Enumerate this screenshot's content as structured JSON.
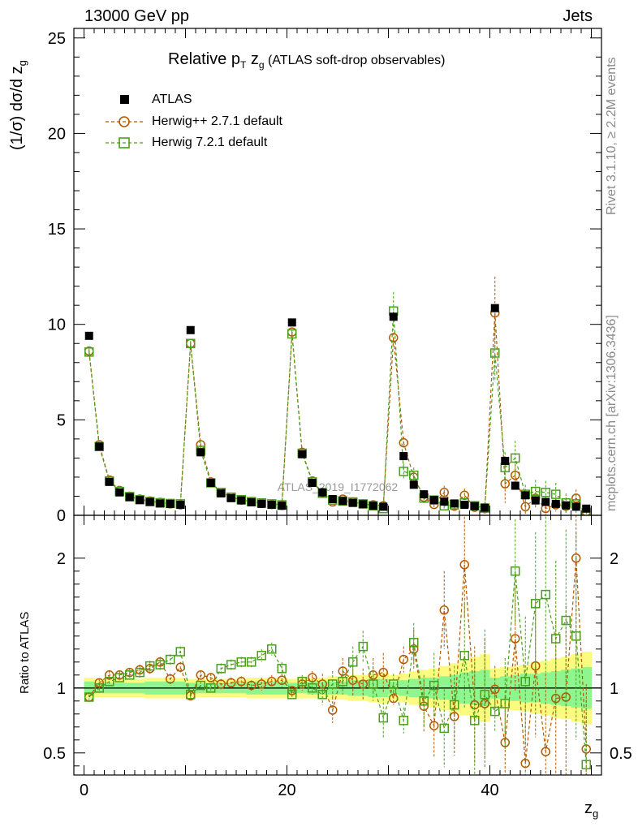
{
  "header": {
    "left": "13000 GeV pp",
    "right": "Jets"
  },
  "side_text": {
    "rivet": "Rivet 3.1.10, ≥ 2.2M events",
    "mcplots": "mcplots.cern.ch [arXiv:1306.3436]"
  },
  "colors": {
    "atlas": "#000000",
    "herwigpp": "#b35900",
    "herwig7": "#4aa01d",
    "band_inner": "#8ff58f",
    "band_outer": "#fbfb80"
  },
  "chart_data": {
    "type": "scatter",
    "title_main": "Relative p",
    "title_sub_T": "T",
    "title_z": " z",
    "title_sub_g": "g",
    "title_suffix": " (ATLAS soft-drop observables)",
    "watermark": "ATLAS_2019_I1772062",
    "xlabel": "z",
    "xlabel_sub": "g",
    "ylabel": "(1/σ) dσ/d z",
    "ylabel_sub": "g",
    "ratio_ylabel": "Ratio to ATLAS",
    "xlim": [
      -1,
      51
    ],
    "ylim": [
      0,
      25.5
    ],
    "ratio_ylim": [
      0.33,
      2.33
    ],
    "x_ticks": [
      0,
      20,
      40
    ],
    "y_ticks": [
      0,
      5,
      10,
      15,
      20,
      25
    ],
    "ratio_ticks": [
      0.5,
      1,
      2
    ],
    "ratio_tick_labels": [
      "0.5",
      "1",
      "2"
    ],
    "legend": [
      "ATLAS",
      "Herwig++ 2.7.1 default",
      "Herwig 7.2.1 default"
    ],
    "x": [
      0.5,
      1.5,
      2.5,
      3.5,
      4.5,
      5.5,
      6.5,
      7.5,
      8.5,
      9.5,
      10.5,
      11.5,
      12.5,
      13.5,
      14.5,
      15.5,
      16.5,
      17.5,
      18.5,
      19.5,
      20.5,
      21.5,
      22.5,
      23.5,
      24.5,
      25.5,
      26.5,
      27.5,
      28.5,
      29.5,
      30.5,
      31.5,
      32.5,
      33.5,
      34.5,
      35.5,
      36.5,
      37.5,
      38.5,
      39.5,
      40.5,
      41.5,
      42.5,
      43.5,
      44.5,
      45.5,
      46.5,
      47.5,
      48.5,
      49.5
    ],
    "series": [
      {
        "name": "ATLAS",
        "values": [
          9.4,
          3.6,
          1.75,
          1.2,
          0.95,
          0.8,
          0.7,
          0.62,
          0.6,
          0.55,
          9.7,
          3.3,
          1.7,
          1.15,
          0.9,
          0.78,
          0.68,
          0.6,
          0.55,
          0.5,
          10.1,
          3.2,
          1.7,
          1.2,
          0.85,
          0.75,
          0.65,
          0.58,
          0.5,
          0.45,
          10.4,
          3.1,
          1.6,
          1.1,
          0.8,
          0.72,
          0.62,
          0.55,
          0.48,
          0.4,
          10.85,
          2.85,
          1.55,
          1.05,
          0.78,
          0.7,
          0.6,
          0.52,
          0.45,
          0.35
        ],
        "ratio_band_inner": [
          0.05,
          0.04,
          0.04,
          0.04,
          0.04,
          0.04,
          0.05,
          0.05,
          0.05,
          0.05,
          0.04,
          0.04,
          0.04,
          0.04,
          0.04,
          0.04,
          0.05,
          0.05,
          0.05,
          0.05,
          0.04,
          0.04,
          0.05,
          0.05,
          0.05,
          0.05,
          0.06,
          0.06,
          0.07,
          0.07,
          0.05,
          0.06,
          0.07,
          0.08,
          0.08,
          0.09,
          0.1,
          0.12,
          0.13,
          0.14,
          0.08,
          0.09,
          0.1,
          0.11,
          0.11,
          0.12,
          0.13,
          0.14,
          0.15,
          0.16
        ],
        "ratio_band_outer": [
          0.08,
          0.07,
          0.07,
          0.07,
          0.07,
          0.07,
          0.08,
          0.08,
          0.08,
          0.08,
          0.07,
          0.07,
          0.07,
          0.07,
          0.07,
          0.07,
          0.08,
          0.08,
          0.08,
          0.08,
          0.07,
          0.08,
          0.08,
          0.08,
          0.09,
          0.09,
          0.1,
          0.1,
          0.11,
          0.12,
          0.1,
          0.11,
          0.13,
          0.14,
          0.15,
          0.17,
          0.19,
          0.21,
          0.24,
          0.26,
          0.15,
          0.16,
          0.17,
          0.18,
          0.2,
          0.21,
          0.23,
          0.24,
          0.26,
          0.28
        ]
      },
      {
        "name": "Herwig++ 2.7.1 default",
        "values": [
          8.6,
          3.7,
          1.85,
          1.3,
          1.0,
          0.85,
          0.75,
          0.68,
          0.6,
          0.55,
          9.0,
          3.7,
          1.75,
          1.2,
          0.95,
          0.8,
          0.72,
          0.63,
          0.57,
          0.52,
          9.6,
          3.3,
          1.8,
          1.2,
          0.7,
          0.85,
          0.7,
          0.6,
          0.55,
          0.5,
          9.3,
          3.8,
          2.0,
          0.95,
          0.57,
          1.2,
          0.48,
          1.05,
          0.42,
          0.35,
          10.6,
          1.65,
          2.1,
          0.45,
          0.9,
          0.36,
          0.55,
          0.48,
          0.9,
          0.19
        ],
        "errors": [
          0.12,
          0.08,
          0.05,
          0.04,
          0.04,
          0.04,
          0.04,
          0.04,
          0.04,
          0.04,
          0.12,
          0.08,
          0.05,
          0.04,
          0.04,
          0.04,
          0.04,
          0.04,
          0.04,
          0.04,
          0.15,
          0.1,
          0.06,
          0.06,
          0.06,
          0.06,
          0.06,
          0.06,
          0.06,
          0.06,
          0.25,
          0.3,
          0.25,
          0.2,
          0.2,
          0.35,
          0.2,
          0.35,
          0.2,
          0.2,
          1.9,
          1.0,
          0.6,
          0.4,
          0.5,
          0.35,
          0.35,
          0.4,
          0.45,
          0.25
        ],
        "ratios": [
          0.93,
          1.04,
          1.1,
          1.1,
          1.12,
          1.14,
          1.15,
          1.2,
          1.07,
          1.16,
          0.94,
          1.1,
          1.08,
          1.03,
          1.04,
          1.05,
          1.02,
          1.03,
          1.05,
          1.06,
          0.98,
          1.03,
          1.08,
          1.03,
          0.83,
          1.13,
          1.06,
          1.03,
          1.1,
          1.12,
          0.92,
          1.22,
          1.3,
          0.86,
          0.71,
          1.6,
          0.78,
          1.95,
          0.87,
          0.88,
          0.99,
          0.58,
          1.38,
          0.42,
          1.17,
          0.51,
          0.92,
          0.93,
          2.0,
          0.53
        ],
        "ratio_errors": [
          0.02,
          0.03,
          0.03,
          0.03,
          0.03,
          0.04,
          0.04,
          0.04,
          0.04,
          0.04,
          0.02,
          0.03,
          0.03,
          0.04,
          0.04,
          0.04,
          0.04,
          0.05,
          0.05,
          0.05,
          0.03,
          0.05,
          0.05,
          0.08,
          0.1,
          0.1,
          0.12,
          0.12,
          0.13,
          0.15,
          0.05,
          0.1,
          0.15,
          0.2,
          0.25,
          0.3,
          0.3,
          0.4,
          0.45,
          0.5,
          0.18,
          0.35,
          0.4,
          0.45,
          0.55,
          0.6,
          0.6,
          0.7,
          0.8,
          0.5
        ]
      },
      {
        "name": "Herwig 7.2.1 default",
        "values": [
          8.55,
          3.6,
          1.8,
          1.25,
          0.98,
          0.82,
          0.72,
          0.66,
          0.62,
          0.6,
          9.0,
          3.4,
          1.7,
          1.2,
          0.95,
          0.82,
          0.72,
          0.65,
          0.6,
          0.55,
          9.5,
          3.25,
          1.75,
          1.15,
          0.8,
          0.75,
          0.7,
          0.6,
          0.5,
          0.35,
          10.7,
          2.3,
          2.1,
          0.9,
          0.8,
          0.5,
          0.55,
          0.65,
          0.5,
          0.38,
          8.5,
          2.5,
          3.0,
          1.1,
          1.25,
          1.2,
          1.1,
          0.65,
          0.6,
          0.15
        ],
        "errors": [
          0.12,
          0.08,
          0.05,
          0.04,
          0.04,
          0.04,
          0.04,
          0.04,
          0.04,
          0.04,
          0.12,
          0.08,
          0.05,
          0.04,
          0.04,
          0.04,
          0.04,
          0.04,
          0.04,
          0.04,
          0.15,
          0.1,
          0.06,
          0.06,
          0.06,
          0.06,
          0.06,
          0.06,
          0.06,
          0.06,
          1.0,
          0.4,
          0.4,
          0.25,
          0.2,
          0.2,
          0.25,
          0.3,
          0.25,
          0.25,
          1.5,
          0.8,
          0.9,
          0.5,
          0.6,
          0.6,
          0.6,
          0.5,
          0.5,
          0.25
        ],
        "ratios": [
          0.93,
          1.0,
          1.05,
          1.08,
          1.1,
          1.12,
          1.17,
          1.18,
          1.22,
          1.28,
          0.95,
          1.02,
          1.0,
          1.15,
          1.18,
          1.2,
          1.2,
          1.25,
          1.3,
          1.15,
          0.95,
          1.05,
          1.0,
          0.95,
          1.03,
          1.05,
          1.2,
          1.32,
          1.03,
          0.77,
          1.03,
          0.75,
          1.35,
          0.9,
          1.02,
          0.69,
          0.87,
          1.25,
          0.75,
          0.95,
          0.82,
          0.88,
          1.9,
          1.05,
          1.65,
          1.72,
          1.38,
          1.52,
          1.4,
          0.41
        ],
        "ratio_errors": [
          0.02,
          0.03,
          0.03,
          0.03,
          0.03,
          0.04,
          0.04,
          0.04,
          0.04,
          0.04,
          0.02,
          0.03,
          0.03,
          0.04,
          0.04,
          0.04,
          0.04,
          0.05,
          0.05,
          0.05,
          0.03,
          0.05,
          0.05,
          0.08,
          0.1,
          0.1,
          0.12,
          0.12,
          0.13,
          0.15,
          0.08,
          0.1,
          0.15,
          0.2,
          0.25,
          0.3,
          0.3,
          0.4,
          0.45,
          0.5,
          0.15,
          0.35,
          0.4,
          0.5,
          0.55,
          0.6,
          0.6,
          0.7,
          0.8,
          0.5
        ]
      }
    ]
  }
}
